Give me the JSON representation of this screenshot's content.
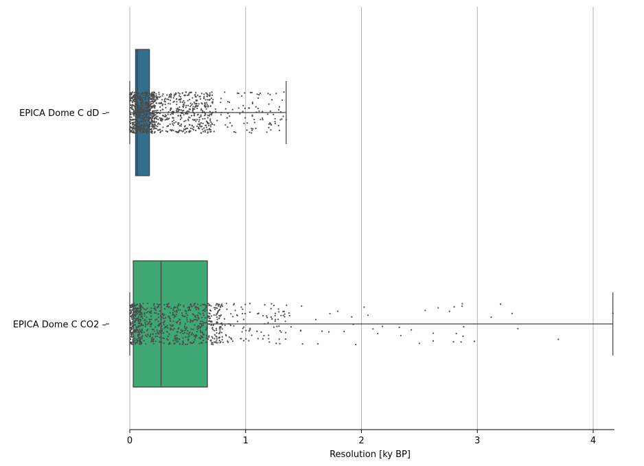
{
  "chart_data": {
    "type": "boxplot",
    "orientation": "horizontal",
    "title": "",
    "xlabel": "Resolution [ky BP]",
    "ylabel": "",
    "xlim": [
      0,
      4.2
    ],
    "xticks": [
      0,
      1,
      2,
      3,
      4
    ],
    "xtick_labels": [
      "0",
      "1",
      "2",
      "3",
      "4"
    ],
    "grid": "vertical lines at x ticks",
    "legend": "none",
    "point_color": "#4a4a4a",
    "box_edge_color": "#3d3d3d",
    "categories": [
      {
        "label": "EPICA Dome C dD",
        "color": "#356f8f",
        "min": 0.0,
        "q1": 0.05,
        "median": 0.065,
        "q3": 0.17,
        "max": 1.35,
        "points_summary": "dense strip-plot points concentrated between 0 and 0.7, sparse out to ~1.35"
      },
      {
        "label": "EPICA Dome C CO2",
        "color": "#3fa874",
        "min": 0.0,
        "q1": 0.03,
        "median": 0.27,
        "q3": 0.67,
        "max": 4.17,
        "points_summary": "dense strip-plot points between 0 and 1.3, sparse out to ~3.7, max ~4.17"
      }
    ]
  }
}
